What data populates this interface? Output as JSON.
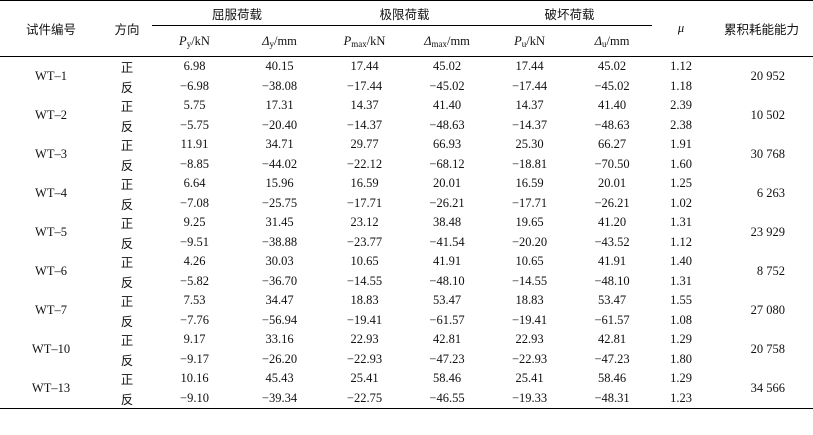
{
  "headers": {
    "specimen": "试件编号",
    "direction": "方向",
    "yield": "屈服荷载",
    "ultimate": "极限荷载",
    "failure": "破坏荷载",
    "mu": "μ",
    "energy": "累积耗能能力",
    "py_sym": "P",
    "py_sub": "y",
    "py_unit": "/kN",
    "dy_sym": "Δ",
    "dy_sub": "y",
    "dy_unit": "/mm",
    "pmax_sym": "P",
    "pmax_sub": "max",
    "pmax_unit": "/kN",
    "dmax_sym": "Δ",
    "dmax_sub": "max",
    "dmax_unit": "/mm",
    "pu_sym": "P",
    "pu_sub": "u",
    "pu_unit": "/kN",
    "du_sym": "Δ",
    "du_sub": "u",
    "du_unit": "/mm"
  },
  "rows": [
    {
      "id": "WT–1",
      "pos": {
        "dir": "正",
        "py": "6.98",
        "dy": "40.15",
        "pmax": "17.44",
        "dmax": "45.02",
        "pu": "17.44",
        "du": "45.02",
        "mu": "1.12"
      },
      "neg": {
        "dir": "反",
        "py": "−6.98",
        "dy": "−38.08",
        "pmax": "−17.44",
        "dmax": "−45.02",
        "pu": "−17.44",
        "du": "−45.02",
        "mu": "1.18"
      },
      "energy": "20 952"
    },
    {
      "id": "WT–2",
      "pos": {
        "dir": "正",
        "py": "5.75",
        "dy": "17.31",
        "pmax": "14.37",
        "dmax": "41.40",
        "pu": "14.37",
        "du": "41.40",
        "mu": "2.39"
      },
      "neg": {
        "dir": "反",
        "py": "−5.75",
        "dy": "−20.40",
        "pmax": "−14.37",
        "dmax": "−48.63",
        "pu": "−14.37",
        "du": "−48.63",
        "mu": "2.38"
      },
      "energy": "10 502"
    },
    {
      "id": "WT–3",
      "pos": {
        "dir": "正",
        "py": "11.91",
        "dy": "34.71",
        "pmax": "29.77",
        "dmax": "66.93",
        "pu": "25.30",
        "du": "66.27",
        "mu": "1.91"
      },
      "neg": {
        "dir": "反",
        "py": "−8.85",
        "dy": "−44.02",
        "pmax": "−22.12",
        "dmax": "−68.12",
        "pu": "−18.81",
        "du": "−70.50",
        "mu": "1.60"
      },
      "energy": "30 768"
    },
    {
      "id": "WT–4",
      "pos": {
        "dir": "正",
        "py": "6.64",
        "dy": "15.96",
        "pmax": "16.59",
        "dmax": "20.01",
        "pu": "16.59",
        "du": "20.01",
        "mu": "1.25"
      },
      "neg": {
        "dir": "反",
        "py": "−7.08",
        "dy": "−25.75",
        "pmax": "−17.71",
        "dmax": "−26.21",
        "pu": "−17.71",
        "du": "−26.21",
        "mu": "1.02"
      },
      "energy": "6 263"
    },
    {
      "id": "WT–5",
      "pos": {
        "dir": "正",
        "py": "9.25",
        "dy": "31.45",
        "pmax": "23.12",
        "dmax": "38.48",
        "pu": "19.65",
        "du": "41.20",
        "mu": "1.31"
      },
      "neg": {
        "dir": "反",
        "py": "−9.51",
        "dy": "−38.88",
        "pmax": "−23.77",
        "dmax": "−41.54",
        "pu": "−20.20",
        "du": "−43.52",
        "mu": "1.12"
      },
      "energy": "23 929"
    },
    {
      "id": "WT–6",
      "pos": {
        "dir": "正",
        "py": "4.26",
        "dy": "30.03",
        "pmax": "10.65",
        "dmax": "41.91",
        "pu": "10.65",
        "du": "41.91",
        "mu": "1.40"
      },
      "neg": {
        "dir": "反",
        "py": "−5.82",
        "dy": "−36.70",
        "pmax": "−14.55",
        "dmax": "−48.10",
        "pu": "−14.55",
        "du": "−48.10",
        "mu": "1.31"
      },
      "energy": "8 752"
    },
    {
      "id": "WT–7",
      "pos": {
        "dir": "正",
        "py": "7.53",
        "dy": "34.47",
        "pmax": "18.83",
        "dmax": "53.47",
        "pu": "18.83",
        "du": "53.47",
        "mu": "1.55"
      },
      "neg": {
        "dir": "反",
        "py": "−7.76",
        "dy": "−56.94",
        "pmax": "−19.41",
        "dmax": "−61.57",
        "pu": "−19.41",
        "du": "−61.57",
        "mu": "1.08"
      },
      "energy": "27 080"
    },
    {
      "id": "WT–10",
      "pos": {
        "dir": "正",
        "py": "9.17",
        "dy": "33.16",
        "pmax": "22.93",
        "dmax": "42.81",
        "pu": "22.93",
        "du": "42.81",
        "mu": "1.29"
      },
      "neg": {
        "dir": "反",
        "py": "−9.17",
        "dy": "−26.20",
        "pmax": "−22.93",
        "dmax": "−47.23",
        "pu": "−22.93",
        "du": "−47.23",
        "mu": "1.80"
      },
      "energy": "20 758"
    },
    {
      "id": "WT–13",
      "pos": {
        "dir": "正",
        "py": "10.16",
        "dy": "45.43",
        "pmax": "25.41",
        "dmax": "58.46",
        "pu": "25.41",
        "du": "58.46",
        "mu": "1.29"
      },
      "neg": {
        "dir": "反",
        "py": "−9.10",
        "dy": "−39.34",
        "pmax": "−22.75",
        "dmax": "−46.55",
        "pu": "−19.33",
        "du": "−48.31",
        "mu": "1.23"
      },
      "energy": "34 566"
    }
  ]
}
